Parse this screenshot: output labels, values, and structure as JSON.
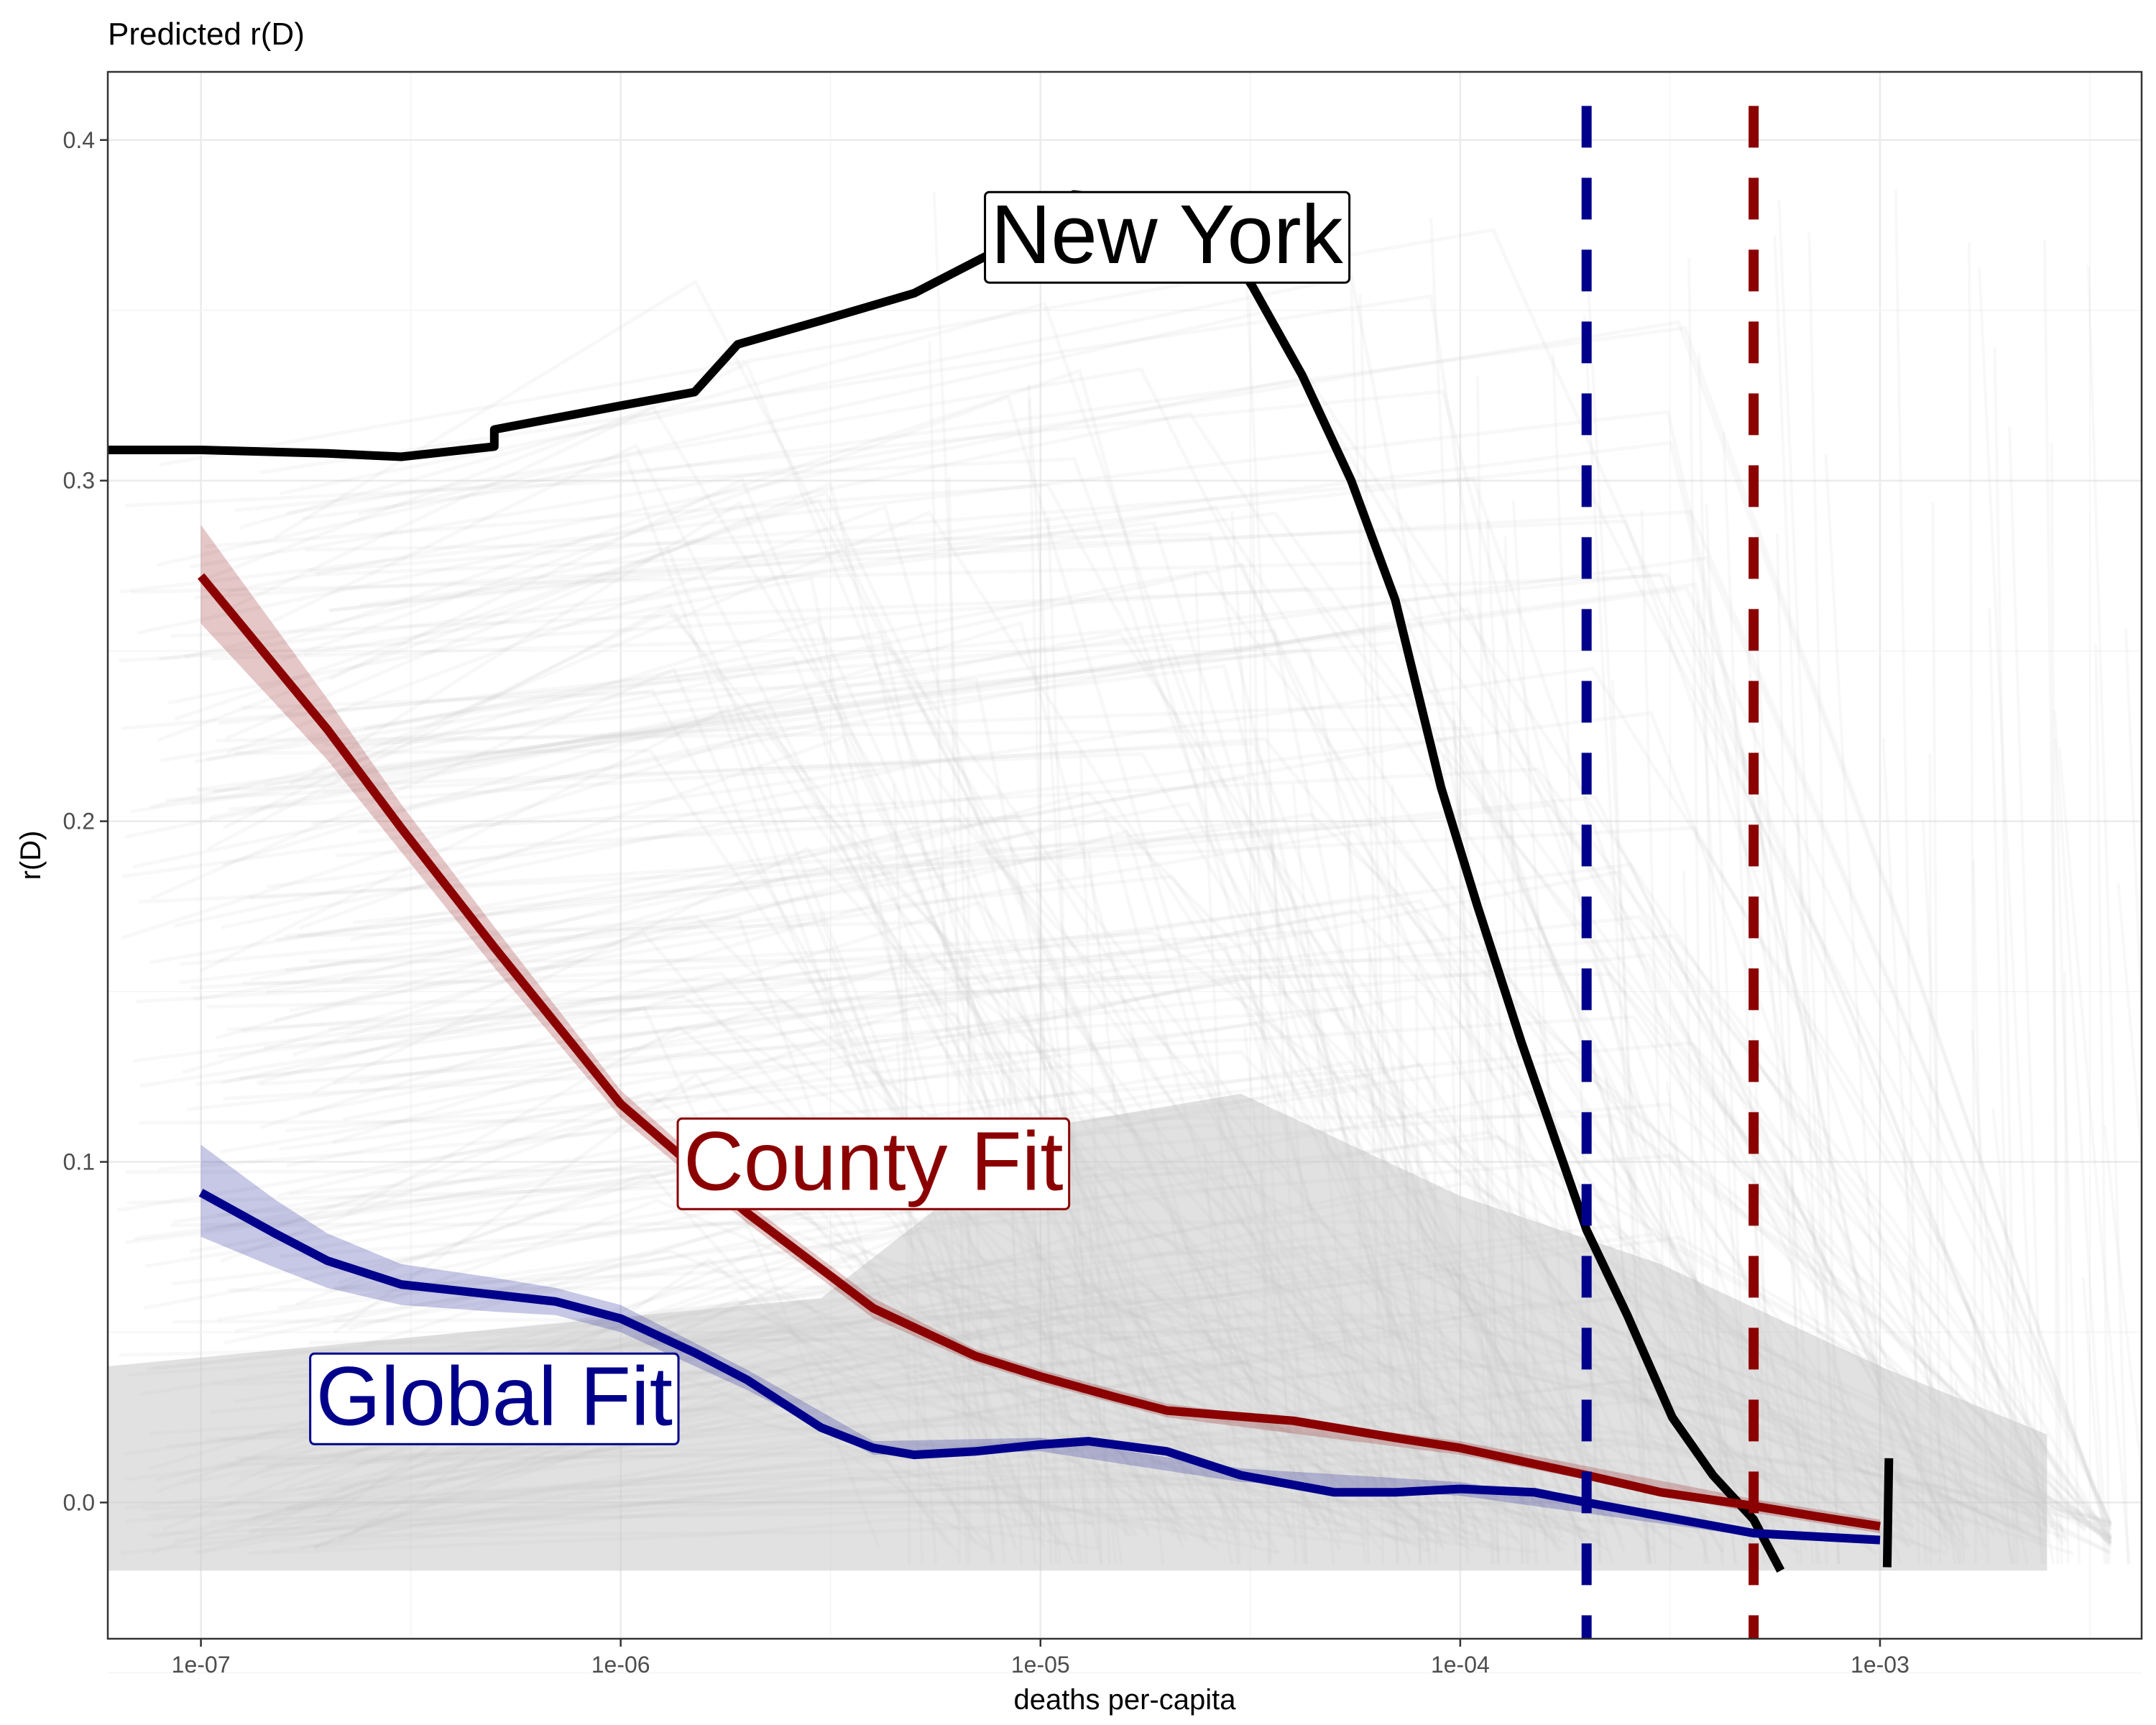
{
  "chart_data": {
    "type": "line",
    "title": "Predicted r(D)",
    "xlabel": "deaths per-capita",
    "ylabel": "r(D)",
    "x_scale": "log10",
    "xlim": [
      6e-08,
      0.0042
    ],
    "ylim": [
      -0.04,
      0.42
    ],
    "x_ticks": [
      {
        "value": 1e-07,
        "label": "1e-07"
      },
      {
        "value": 1e-06,
        "label": "1e-06"
      },
      {
        "value": 1e-05,
        "label": "1e-05"
      },
      {
        "value": 0.0001,
        "label": "1e-04"
      },
      {
        "value": 0.001,
        "label": "1e-03"
      }
    ],
    "y_ticks": [
      {
        "value": 0.0,
        "label": "0.0"
      },
      {
        "value": 0.1,
        "label": "0.1"
      },
      {
        "value": 0.2,
        "label": "0.2"
      },
      {
        "value": 0.3,
        "label": "0.3"
      },
      {
        "value": 0.4,
        "label": "0.4"
      }
    ],
    "grid": true,
    "series": [
      {
        "name": "New York",
        "color": "#000000",
        "style": "solid",
        "points": [
          [
            6e-08,
            0.309
          ],
          [
            1e-07,
            0.309
          ],
          [
            2e-07,
            0.308
          ],
          [
            3e-07,
            0.307
          ],
          [
            5e-07,
            0.31
          ],
          [
            5e-07,
            0.315
          ],
          [
            1e-06,
            0.322
          ],
          [
            1.5e-06,
            0.326
          ],
          [
            1.9e-06,
            0.34
          ],
          [
            3e-06,
            0.347
          ],
          [
            5e-06,
            0.355
          ],
          [
            8e-06,
            0.368
          ],
          [
            1.2e-05,
            0.384
          ],
          [
            2e-05,
            0.381
          ],
          [
            2.8e-05,
            0.368
          ],
          [
            3.2e-05,
            0.357
          ],
          [
            4.2e-05,
            0.331
          ],
          [
            5.5e-05,
            0.3
          ],
          [
            7e-05,
            0.265
          ],
          [
            9e-05,
            0.21
          ],
          [
            0.00011,
            0.175
          ],
          [
            0.00014,
            0.135
          ],
          [
            0.00017,
            0.105
          ],
          [
            0.0002,
            0.08
          ],
          [
            0.00025,
            0.055
          ],
          [
            0.00032,
            0.025
          ],
          [
            0.0004,
            0.008
          ],
          [
            0.0005,
            -0.005
          ],
          [
            0.00058,
            -0.02
          ]
        ]
      },
      {
        "name": "County Fit",
        "color": "#8b0000",
        "style": "solid",
        "points": [
          [
            1e-07,
            0.272
          ],
          [
            2e-07,
            0.227
          ],
          [
            3e-07,
            0.198
          ],
          [
            5e-07,
            0.163
          ],
          [
            1e-06,
            0.117
          ],
          [
            2e-06,
            0.085
          ],
          [
            4e-06,
            0.057
          ],
          [
            7e-06,
            0.043
          ],
          [
            1e-05,
            0.037
          ],
          [
            1.5e-05,
            0.031
          ],
          [
            2e-05,
            0.027
          ],
          [
            4e-05,
            0.024
          ],
          [
            7e-05,
            0.019
          ],
          [
            0.0001,
            0.016
          ],
          [
            0.0002,
            0.008
          ],
          [
            0.0003,
            0.003
          ],
          [
            0.0005,
            -0.001
          ],
          [
            0.0007,
            -0.004
          ],
          [
            0.001,
            -0.007
          ]
        ],
        "band_upper": [
          [
            1e-07,
            0.287
          ],
          [
            2e-07,
            0.236
          ],
          [
            3e-07,
            0.205
          ],
          [
            5e-07,
            0.169
          ],
          [
            1e-06,
            0.121
          ],
          [
            2e-06,
            0.088
          ],
          [
            4e-06,
            0.06
          ],
          [
            7e-06,
            0.045
          ],
          [
            1e-05,
            0.039
          ],
          [
            2e-05,
            0.029
          ],
          [
            0.0001,
            0.018
          ],
          [
            0.0005,
            0.001
          ],
          [
            0.001,
            -0.005
          ]
        ],
        "band_lower": [
          [
            1e-07,
            0.258
          ],
          [
            2e-07,
            0.218
          ],
          [
            3e-07,
            0.191
          ],
          [
            5e-07,
            0.157
          ],
          [
            1e-06,
            0.113
          ],
          [
            2e-06,
            0.082
          ],
          [
            4e-06,
            0.054
          ],
          [
            7e-06,
            0.041
          ],
          [
            1e-05,
            0.035
          ],
          [
            2e-05,
            0.025
          ],
          [
            0.0001,
            0.014
          ],
          [
            0.0005,
            -0.003
          ],
          [
            0.001,
            -0.009
          ]
        ]
      },
      {
        "name": "Global Fit",
        "color": "#00008b",
        "style": "solid",
        "points": [
          [
            1e-07,
            0.091
          ],
          [
            1.5e-07,
            0.079
          ],
          [
            2e-07,
            0.071
          ],
          [
            3e-07,
            0.064
          ],
          [
            5e-07,
            0.061
          ],
          [
            7e-07,
            0.059
          ],
          [
            1e-06,
            0.054
          ],
          [
            1.5e-06,
            0.044
          ],
          [
            2e-06,
            0.036
          ],
          [
            3e-06,
            0.022
          ],
          [
            4e-06,
            0.016
          ],
          [
            5e-06,
            0.014
          ],
          [
            7e-06,
            0.015
          ],
          [
            1e-05,
            0.017
          ],
          [
            1.3e-05,
            0.018
          ],
          [
            2e-05,
            0.015
          ],
          [
            3e-05,
            0.008
          ],
          [
            5e-05,
            0.003
          ],
          [
            7e-05,
            0.003
          ],
          [
            0.0001,
            0.004
          ],
          [
            0.00015,
            0.003
          ],
          [
            0.0002,
            0.0
          ],
          [
            0.0003,
            -0.004
          ],
          [
            0.0005,
            -0.009
          ],
          [
            0.0007,
            -0.01
          ],
          [
            0.001,
            -0.011
          ]
        ],
        "band_upper": [
          [
            1e-07,
            0.105
          ],
          [
            1.5e-07,
            0.089
          ],
          [
            2e-07,
            0.079
          ],
          [
            3e-07,
            0.07
          ],
          [
            5e-07,
            0.066
          ],
          [
            7e-07,
            0.063
          ],
          [
            1e-06,
            0.058
          ],
          [
            2e-06,
            0.039
          ],
          [
            4e-06,
            0.018
          ],
          [
            1e-05,
            0.019
          ],
          [
            3e-05,
            0.01
          ],
          [
            0.0001,
            0.006
          ],
          [
            0.0005,
            -0.008
          ],
          [
            0.001,
            -0.01
          ]
        ],
        "band_lower": [
          [
            1e-07,
            0.078
          ],
          [
            1.5e-07,
            0.069
          ],
          [
            2e-07,
            0.063
          ],
          [
            3e-07,
            0.058
          ],
          [
            5e-07,
            0.056
          ],
          [
            7e-07,
            0.055
          ],
          [
            1e-06,
            0.05
          ],
          [
            2e-06,
            0.033
          ],
          [
            4e-06,
            0.014
          ],
          [
            1e-05,
            0.015
          ],
          [
            3e-05,
            0.006
          ],
          [
            0.0001,
            0.002
          ],
          [
            0.0005,
            -0.01
          ],
          [
            0.001,
            -0.012
          ]
        ]
      }
    ],
    "reference_lines": [
      {
        "axis": "x",
        "value": 0.0002,
        "color": "#00008b",
        "style": "dashed"
      },
      {
        "axis": "x",
        "value": 0.0005,
        "color": "#8b0000",
        "style": "dashed"
      }
    ],
    "annotations": [
      {
        "text": "New York",
        "x": 2e-05,
        "y": 0.371,
        "color": "#000000"
      },
      {
        "text": "County Fit",
        "x": 4e-06,
        "y": 0.099,
        "color": "#8b0000"
      },
      {
        "text": "Global Fit",
        "x": 5e-07,
        "y": 0.03,
        "color": "#00008b"
      }
    ],
    "background_traces": {
      "description_color": "#c8c8c8",
      "opacity": 0.12
    }
  }
}
